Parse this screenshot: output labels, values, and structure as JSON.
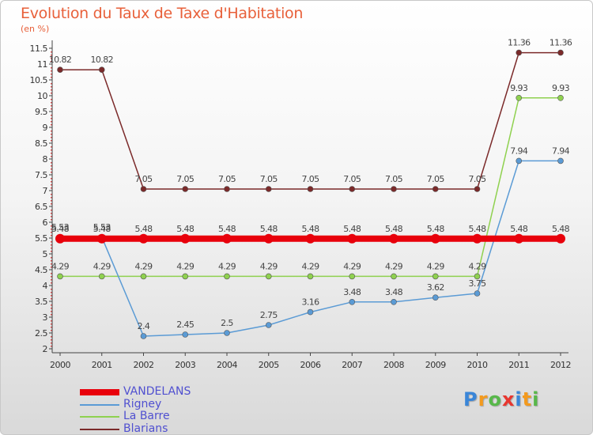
{
  "chart_data": {
    "type": "line",
    "title": "Evolution du Taux de Taxe d'Habitation",
    "unit_label": "(en %)",
    "categories": [
      "2000",
      "2001",
      "2002",
      "2003",
      "2004",
      "2005",
      "2006",
      "2007",
      "2008",
      "2009",
      "2010",
      "2011",
      "2012"
    ],
    "ylim": [
      2,
      11.5
    ],
    "yticks": [
      "2",
      "2.5",
      "3",
      "3.5",
      "4",
      "4.5",
      "5",
      "5.5",
      "6",
      "6.5",
      "7",
      "7.5",
      "8",
      "8.5",
      "9",
      "9.5",
      "10",
      "10.5",
      "11",
      "11.5"
    ],
    "series": [
      {
        "name": "VANDELANS",
        "color": "#e8000b",
        "values": [
          5.48,
          5.48,
          5.48,
          5.48,
          5.48,
          5.48,
          5.48,
          5.48,
          5.48,
          5.48,
          5.48,
          5.48,
          5.48
        ],
        "labels": [
          "5.48",
          "5.48",
          "5.48",
          "5.48",
          "5.48",
          "5.48",
          "5.48",
          "5.48",
          "5.48",
          "5.48",
          "5.48",
          "5.48",
          "5.48"
        ]
      },
      {
        "name": "Rigney",
        "color": "#5b9bd5",
        "values": [
          5.53,
          5.53,
          2.4,
          2.45,
          2.5,
          2.75,
          3.16,
          3.48,
          3.48,
          3.62,
          3.75,
          7.94,
          7.94
        ],
        "labels": [
          "5.53",
          "5.53",
          "2.4",
          "2.45",
          "2.5",
          "2.75",
          "3.16",
          "3.48",
          "3.48",
          "3.62",
          "3.75",
          "7.94",
          "7.94"
        ]
      },
      {
        "name": "La Barre",
        "color": "#8fd14f",
        "values": [
          4.29,
          4.29,
          4.29,
          4.29,
          4.29,
          4.29,
          4.29,
          4.29,
          4.29,
          4.29,
          4.29,
          9.93,
          9.93
        ],
        "labels": [
          "4.29",
          "4.29",
          "4.29",
          "4.29",
          "4.29",
          "4.29",
          "4.29",
          "4.29",
          "4.29",
          "4.29",
          "4.29",
          "9.93",
          "9.93"
        ]
      },
      {
        "name": "Blarians",
        "color": "#7b2a2a",
        "values": [
          10.82,
          10.82,
          7.05,
          7.05,
          7.05,
          7.05,
          7.05,
          7.05,
          7.05,
          7.05,
          7.05,
          11.36,
          11.36
        ],
        "labels": [
          "10.82",
          "10.82",
          "7.05",
          "7.05",
          "7.05",
          "7.05",
          "7.05",
          "7.05",
          "7.05",
          "7.05",
          "7.05",
          "11.36",
          "11.36"
        ]
      }
    ],
    "legend": [
      "VANDELANS",
      "Rigney",
      "La Barre",
      "Blarians"
    ]
  },
  "brand": {
    "letters": [
      "P",
      "r",
      "o",
      "x",
      "i",
      "t",
      "i"
    ],
    "colors": [
      "#3a86d8",
      "#f39a1e",
      "#58b84a",
      "#e8362f",
      "#3a86d8",
      "#f39a1e",
      "#58b84a"
    ]
  }
}
